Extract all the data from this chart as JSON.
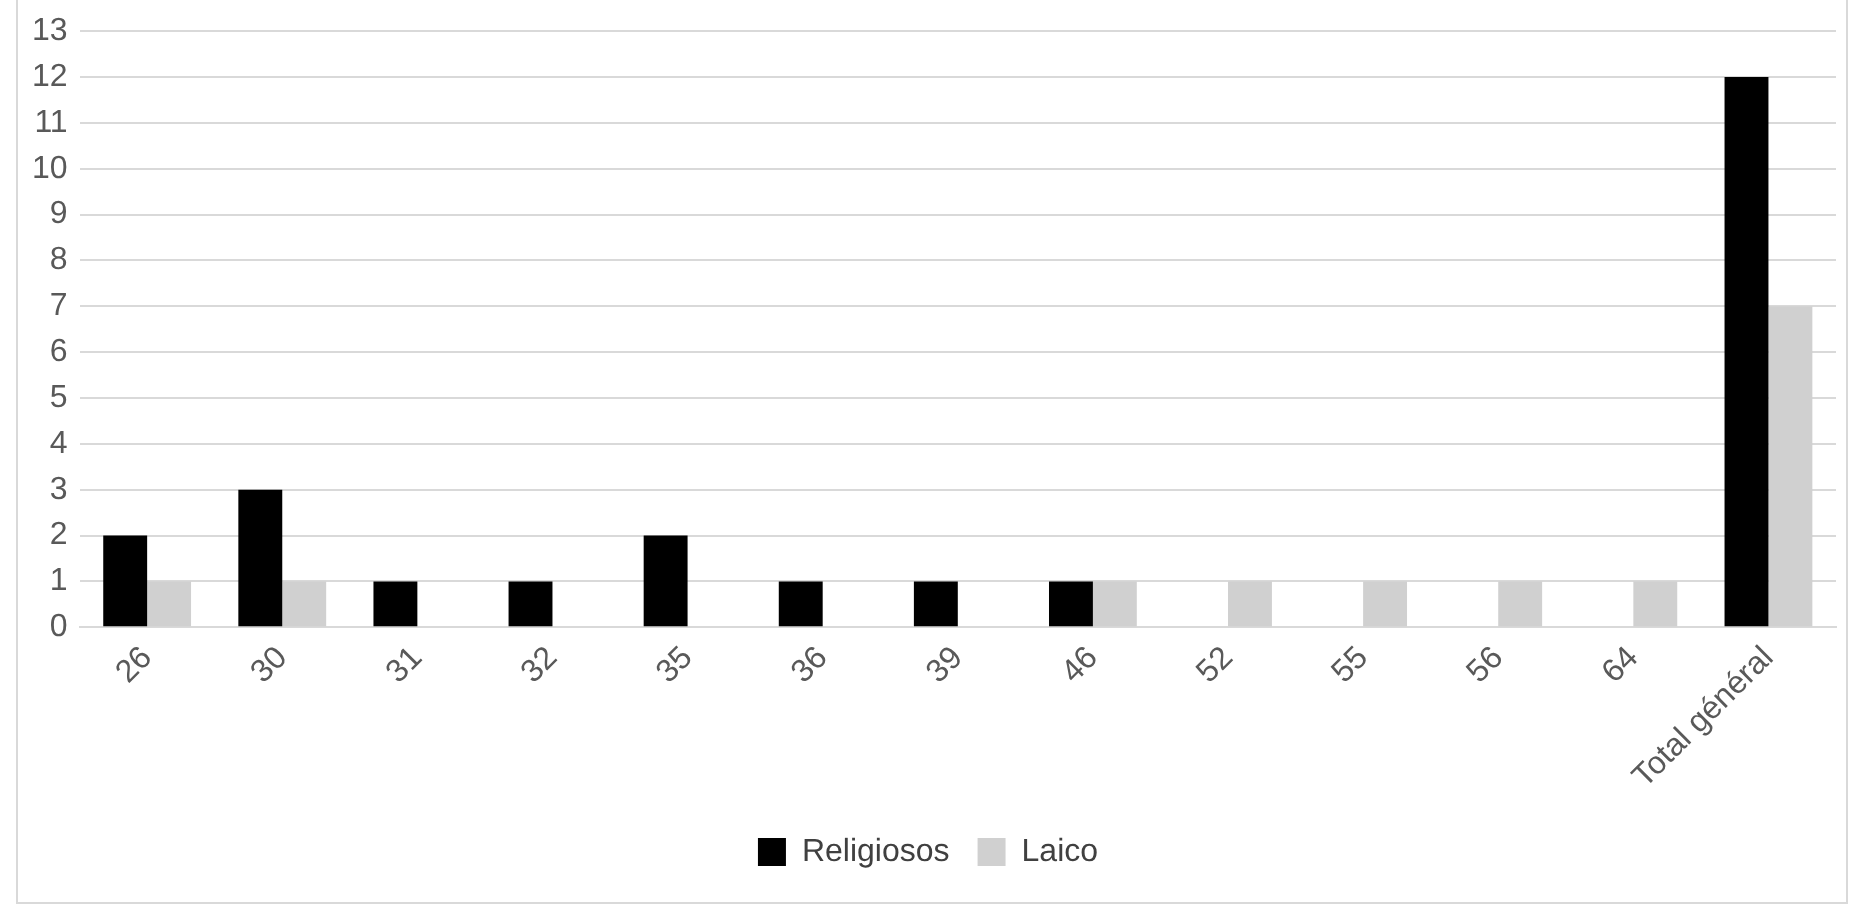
{
  "chart_data": {
    "type": "bar",
    "categories": [
      "26",
      "30",
      "31",
      "32",
      "35",
      "36",
      "39",
      "46",
      "52",
      "55",
      "56",
      "64",
      "Total général"
    ],
    "series": [
      {
        "name": "Religiosos",
        "color": "#000000",
        "values": [
          2,
          3,
          1,
          1,
          2,
          1,
          1,
          1,
          null,
          null,
          null,
          null,
          12
        ]
      },
      {
        "name": "Laico",
        "color": "#d0d0d0",
        "values": [
          1,
          1,
          null,
          null,
          null,
          null,
          null,
          1,
          1,
          1,
          1,
          1,
          7
        ]
      }
    ],
    "ylim": [
      0,
      13
    ],
    "yticks": [
      0,
      1,
      2,
      3,
      4,
      5,
      6,
      7,
      8,
      9,
      10,
      11,
      12,
      13
    ],
    "grid": "y",
    "legend": "bottom"
  }
}
